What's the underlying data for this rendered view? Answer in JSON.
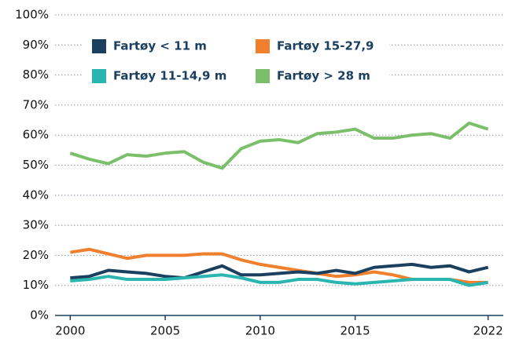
{
  "chart_data": {
    "type": "line",
    "x": [
      2000,
      2001,
      2002,
      2003,
      2004,
      2005,
      2006,
      2007,
      2008,
      2009,
      2010,
      2011,
      2012,
      2013,
      2014,
      2015,
      2016,
      2017,
      2018,
      2019,
      2020,
      2021,
      2022
    ],
    "series": [
      {
        "name": "Fartøy < 11 m",
        "color": "#1b3f5e",
        "values": [
          12.5,
          13,
          15,
          14.5,
          14,
          13,
          12.5,
          14.5,
          16.5,
          13.5,
          13.5,
          14,
          14.5,
          14,
          15,
          14,
          16,
          16.5,
          17,
          16,
          16.5,
          14.5,
          16
        ]
      },
      {
        "name": "Fartøy 15-27,9",
        "color": "#f07f2e",
        "values": [
          21,
          22,
          20.5,
          19,
          20,
          20,
          20,
          20.5,
          20.5,
          18.5,
          17,
          16,
          15,
          14,
          13,
          13.5,
          14.5,
          13.5,
          12,
          12,
          12,
          11,
          11
        ]
      },
      {
        "name": "Fartøy 11-14,9 m",
        "color": "#2bb5b0",
        "values": [
          11.5,
          12,
          13,
          12,
          12,
          12,
          12.5,
          13,
          13.5,
          12.5,
          11,
          11,
          12,
          12,
          11,
          10.5,
          11,
          11.5,
          12,
          12,
          12,
          10,
          11
        ]
      },
      {
        "name": "Fartøy > 28 m",
        "color": "#7cbf6b",
        "values": [
          54,
          52,
          50.5,
          53.5,
          53,
          54,
          54.5,
          51,
          49,
          55.5,
          58,
          58.5,
          57.5,
          60.5,
          61,
          62,
          59,
          59,
          60,
          60.5,
          59,
          64,
          62
        ]
      }
    ],
    "xlim": [
      1999.2,
      2022.8
    ],
    "xticks": [
      2000,
      2005,
      2010,
      2015,
      2022
    ],
    "ylim": [
      0,
      100
    ],
    "yticks": [
      {
        "value": 0,
        "label": "0%"
      },
      {
        "value": 10,
        "label": "10%"
      },
      {
        "value": 20,
        "label": "20%"
      },
      {
        "value": 30,
        "label": "30%"
      },
      {
        "value": 40,
        "label": "40%"
      },
      {
        "value": 50,
        "label": "50%"
      },
      {
        "value": 60,
        "label": "60%"
      },
      {
        "value": 70,
        "label": "70%"
      },
      {
        "value": 80,
        "label": "80%"
      },
      {
        "value": 90,
        "label": "90%"
      },
      {
        "value": 100,
        "label": "100%"
      }
    ],
    "grid": true
  }
}
